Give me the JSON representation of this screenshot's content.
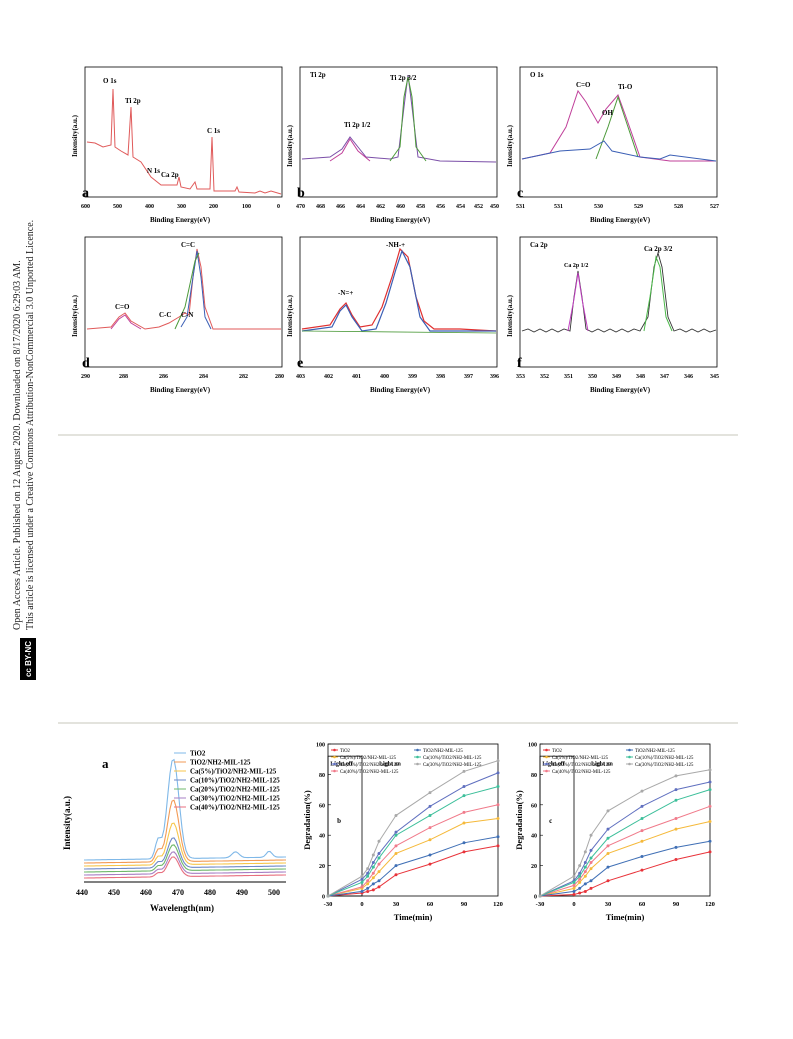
{
  "side": {
    "line1": "Open Access Article. Published on 12 August 2020. Downloaded on 8/17/2020 6:29:03 AM.",
    "line2": "This article is licensed under a Creative Commons Attribution-NonCommercial 3.0 Unported Licence.",
    "badge": "cc BY-NC"
  },
  "xps": {
    "a": {
      "letter": "a",
      "xlabel": "Binding Energy(eV)",
      "ylabel": "Intensity(a.u.)",
      "ticks": [
        "600",
        "500",
        "400",
        "300",
        "200",
        "100",
        "0"
      ],
      "peaks": [
        "O 1s",
        "Ti 2p",
        "N 1s",
        "Ca 2p",
        "C 1s"
      ]
    },
    "b": {
      "letter": "b",
      "title": "Ti 2p",
      "xlabel": "Binding Energy(eV)",
      "ylabel": "Intensity(a.u.)",
      "ticks": [
        "470",
        "468",
        "466",
        "464",
        "462",
        "460",
        "458",
        "456",
        "454",
        "452",
        "450"
      ],
      "peaks": [
        "Ti 2p 1/2",
        "Ti 2p 3/2"
      ]
    },
    "c": {
      "letter": "c",
      "title": "O 1s",
      "xlabel": "Binding Energy(eV)",
      "ylabel": "Intensity(a.u.)",
      "ticks": [
        "531",
        "531",
        "530",
        "529",
        "528",
        "527"
      ],
      "peaks": [
        "C=O",
        "OH",
        "Ti-O"
      ]
    },
    "d": {
      "letter": "d",
      "xlabel": "Binding Energy(eV)",
      "ylabel": "Intensity(a.u.)",
      "ticks": [
        "290",
        "288",
        "286",
        "284",
        "282",
        "280"
      ],
      "peaks": [
        "C=O",
        "C-C",
        "C-N",
        "C=C"
      ]
    },
    "e": {
      "letter": "e",
      "xlabel": "Binding Energy(eV)",
      "ylabel": "Intensity(a.u.)",
      "ticks": [
        "403",
        "402",
        "401",
        "400",
        "399",
        "398",
        "397",
        "396"
      ],
      "peaks": [
        "-N=+",
        "-NH-+"
      ]
    },
    "f": {
      "letter": "f",
      "title": "Ca 2p",
      "xlabel": "Binding Energy(eV)",
      "ylabel": "Intensity(a.u.)",
      "ticks": [
        "353",
        "352",
        "351",
        "350",
        "349",
        "348",
        "347",
        "346",
        "345"
      ],
      "peaks": [
        "Ca 2p 1/2",
        "Ca 2p 3/2"
      ]
    }
  },
  "pl": {
    "letter": "a",
    "xlabel": "Wavelength(nm)",
    "ylabel": "Intensity(a.u.)",
    "legend": [
      "TiO2",
      "TiO2/NH2-MIL-125",
      "Ca(5%)/TiO2/NH2-MIL-125",
      "Ca(10%)/TiO2/NH2-MIL-125",
      "Ca(20%)/TiO2/NH2-MIL-125",
      "Ca(30%)/TiO2/NH2-MIL-125",
      "Ca(40%)/TiO2/NH2-MIL-125"
    ],
    "colors": [
      "#7fb8e8",
      "#f29a55",
      "#f7c64b",
      "#6e89c8",
      "#6fb86b",
      "#a77fc4",
      "#e86f7f"
    ]
  },
  "chart_data": [
    {
      "type": "line",
      "panel": "b",
      "xlabel": "Time(min)",
      "ylabel": "Degradation(%)",
      "xlim": [
        -30,
        120
      ],
      "ylim": [
        0,
        100
      ],
      "x_ticks": [
        "-30",
        "0",
        "30",
        "60",
        "90",
        "120"
      ],
      "y_ticks": [
        "0",
        "20",
        "40",
        "60",
        "80",
        "100"
      ],
      "annotations": [
        "Light off",
        "Light on"
      ],
      "x": [
        -30,
        0,
        5,
        10,
        15,
        30,
        60,
        90,
        120
      ],
      "series": [
        {
          "name": "TiO2",
          "color": "#e8333a",
          "values": [
            0,
            2,
            3,
            4,
            6,
            14,
            21,
            29,
            33
          ]
        },
        {
          "name": "Ca(5%)/TiO2/NH2-MIL-125",
          "color": "#f5b93a",
          "values": [
            0,
            5,
            8,
            12,
            16,
            28,
            37,
            48,
            51
          ]
        },
        {
          "name": "Ca(20%)/TiO2/NH2-MIL-125",
          "color": "#5f6fbf",
          "values": [
            0,
            11,
            15,
            22,
            28,
            42,
            59,
            72,
            81
          ]
        },
        {
          "name": "Ca(40%)/TiO2/NH2-MIL-125",
          "color": "#f07a8a",
          "values": [
            0,
            6,
            10,
            15,
            21,
            33,
            45,
            55,
            60
          ]
        },
        {
          "name": "TiO2/NH2-MIL-125",
          "color": "#3f6fb5",
          "values": [
            0,
            3,
            5,
            8,
            10,
            20,
            27,
            35,
            39
          ]
        },
        {
          "name": "Ca(10%)/TiO2/NH2-MIL-125",
          "color": "#3cbf9a",
          "values": [
            0,
            9,
            13,
            19,
            25,
            40,
            53,
            66,
            72
          ]
        },
        {
          "name": "Ca(30%)/TiO2/NH2-MIL-125",
          "color": "#a9a9a9",
          "values": [
            0,
            13,
            18,
            27,
            36,
            53,
            68,
            82,
            89
          ]
        }
      ]
    },
    {
      "type": "line",
      "panel": "c",
      "xlabel": "Time(min)",
      "ylabel": "Degradation(%)",
      "xlim": [
        -30,
        120
      ],
      "ylim": [
        0,
        100
      ],
      "x_ticks": [
        "-30",
        "0",
        "30",
        "60",
        "90",
        "120"
      ],
      "y_ticks": [
        "0",
        "20",
        "40",
        "60",
        "80",
        "100"
      ],
      "annotations": [
        "Light off",
        "Light on"
      ],
      "x": [
        -30,
        0,
        5,
        10,
        15,
        30,
        60,
        90,
        120
      ],
      "series": [
        {
          "name": "TiO2",
          "color": "#e8333a",
          "values": [
            0,
            1,
            2,
            3,
            5,
            10,
            17,
            24,
            29
          ]
        },
        {
          "name": "Ca(5%)/TiO2/NH2-MIL-125",
          "color": "#f5b93a",
          "values": [
            0,
            5,
            9,
            13,
            18,
            28,
            36,
            44,
            49
          ]
        },
        {
          "name": "Ca(20%)/TiO2/NH2-MIL-125",
          "color": "#5f6fbf",
          "values": [
            0,
            10,
            15,
            22,
            30,
            44,
            59,
            70,
            75
          ]
        },
        {
          "name": "Ca(40%)/TiO2/NH2-MIL-125",
          "color": "#f07a8a",
          "values": [
            0,
            7,
            11,
            16,
            22,
            33,
            43,
            51,
            59
          ]
        },
        {
          "name": "TiO2/NH2-MIL-125",
          "color": "#3f6fb5",
          "values": [
            0,
            3,
            5,
            8,
            10,
            19,
            26,
            32,
            36
          ]
        },
        {
          "name": "Ca(10%)/TiO2/NH2-MIL-125",
          "color": "#3cbf9a",
          "values": [
            0,
            9,
            13,
            19,
            25,
            38,
            51,
            63,
            70
          ]
        },
        {
          "name": "Ca(30%)/TiO2/NH2-MIL-125",
          "color": "#a9a9a9",
          "values": [
            0,
            13,
            20,
            29,
            40,
            56,
            69,
            79,
            83
          ]
        }
      ]
    }
  ]
}
